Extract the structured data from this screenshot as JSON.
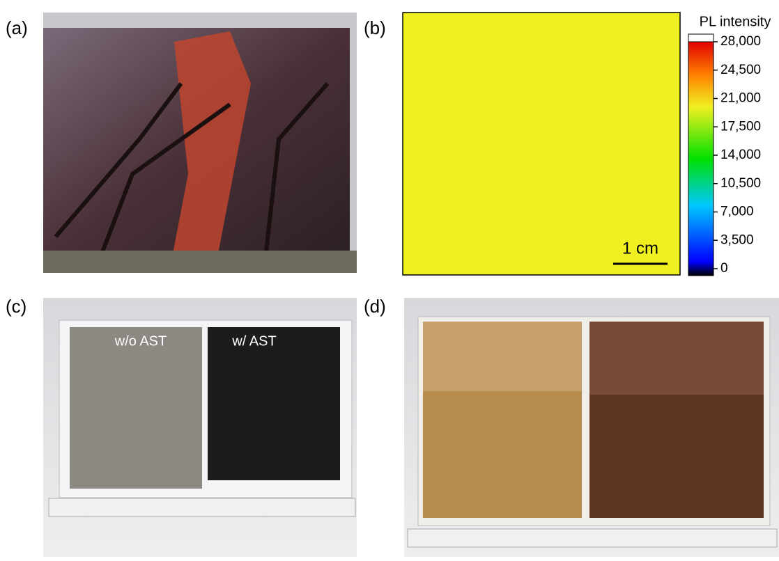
{
  "panels": {
    "a": {
      "label": "(a)"
    },
    "b": {
      "label": "(b)",
      "scale_bar": "1 cm",
      "colorbar": {
        "title": "PL intensity",
        "lim": [
          0,
          28000
        ],
        "ticks": [
          0,
          {
            "value": 3500,
            "label": "3,500"
          },
          {
            "value": 7000,
            "label": "7,000"
          },
          {
            "value": 10500,
            "label": "10,500"
          },
          {
            "value": 14000,
            "label": "14,000"
          },
          {
            "value": 17500,
            "label": "17,500"
          },
          {
            "value": 21000,
            "label": "21,000"
          },
          {
            "value": 24500,
            "label": "24,500"
          },
          {
            "value": 28000,
            "label": "28,000"
          }
        ]
      }
    },
    "c": {
      "label": "(c)",
      "left_sample": "w/o AST",
      "right_sample": "w/ AST"
    },
    "d": {
      "label": "(d)"
    }
  }
}
